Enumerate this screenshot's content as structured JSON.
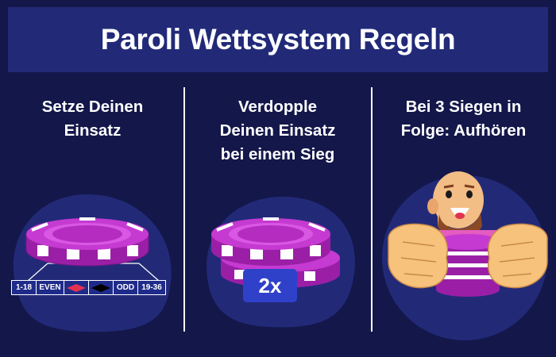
{
  "title": "Paroli Wettsystem Regeln",
  "steps": [
    {
      "label": "Setze Deinen\nEinsatz"
    },
    {
      "label": "Verdopple\nDeinen Einsatz\nbei einem Sieg"
    },
    {
      "label": "Bei 3 Siegen in\nFolge: Aufhören"
    }
  ],
  "bet_table": [
    "1-18",
    "EVEN",
    "",
    "",
    "ODD",
    "19-36"
  ],
  "multiplier": "2x",
  "colors": {
    "background": "#13174a",
    "banner": "#222a78",
    "chip": "#b52cc0",
    "blob": "#222a78",
    "badge": "#2f41c9"
  }
}
